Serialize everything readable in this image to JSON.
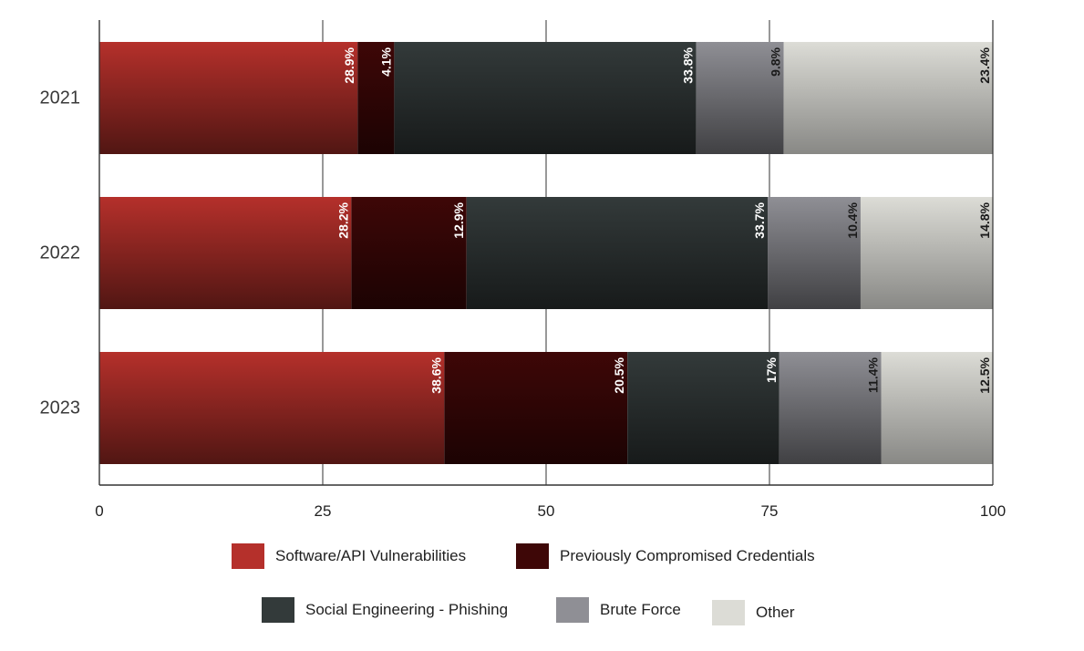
{
  "chart_data": {
    "type": "bar",
    "orientation": "horizontal",
    "stacked": true,
    "categories": [
      "2021",
      "2022",
      "2023"
    ],
    "series": [
      {
        "name": "Software/API Vulnerabilities",
        "values": [
          28.9,
          28.2,
          38.6
        ],
        "labels": [
          "28.9%",
          "28.2%",
          "38.6%"
        ],
        "color": "#b5302b"
      },
      {
        "name": "Previously Compromised Credentials",
        "values": [
          4.1,
          12.9,
          20.5
        ],
        "labels": [
          "4.1%",
          "12.9%",
          "20.5%"
        ],
        "color": "#3e0707"
      },
      {
        "name": "Social Engineering - Phishing",
        "values": [
          33.8,
          33.7,
          17
        ],
        "labels": [
          "33.8%",
          "33.7%",
          "17%"
        ],
        "color": "#333a3a"
      },
      {
        "name": "Brute Force",
        "values": [
          9.8,
          10.4,
          11.4
        ],
        "labels": [
          "9.8%",
          "10.4%",
          "11.4%"
        ],
        "color": "#8f8f95"
      },
      {
        "name": "Other",
        "values": [
          23.4,
          14.8,
          12.5
        ],
        "labels": [
          "23.4%",
          "14.8%",
          "12.5%"
        ],
        "color": "#dcdcd6"
      }
    ],
    "xlim": [
      0,
      100
    ],
    "xticks": [
      "0",
      "25",
      "50",
      "75",
      "100"
    ],
    "grid": true,
    "legend": "bottom",
    "title": "",
    "xlabel": "",
    "ylabel": ""
  }
}
